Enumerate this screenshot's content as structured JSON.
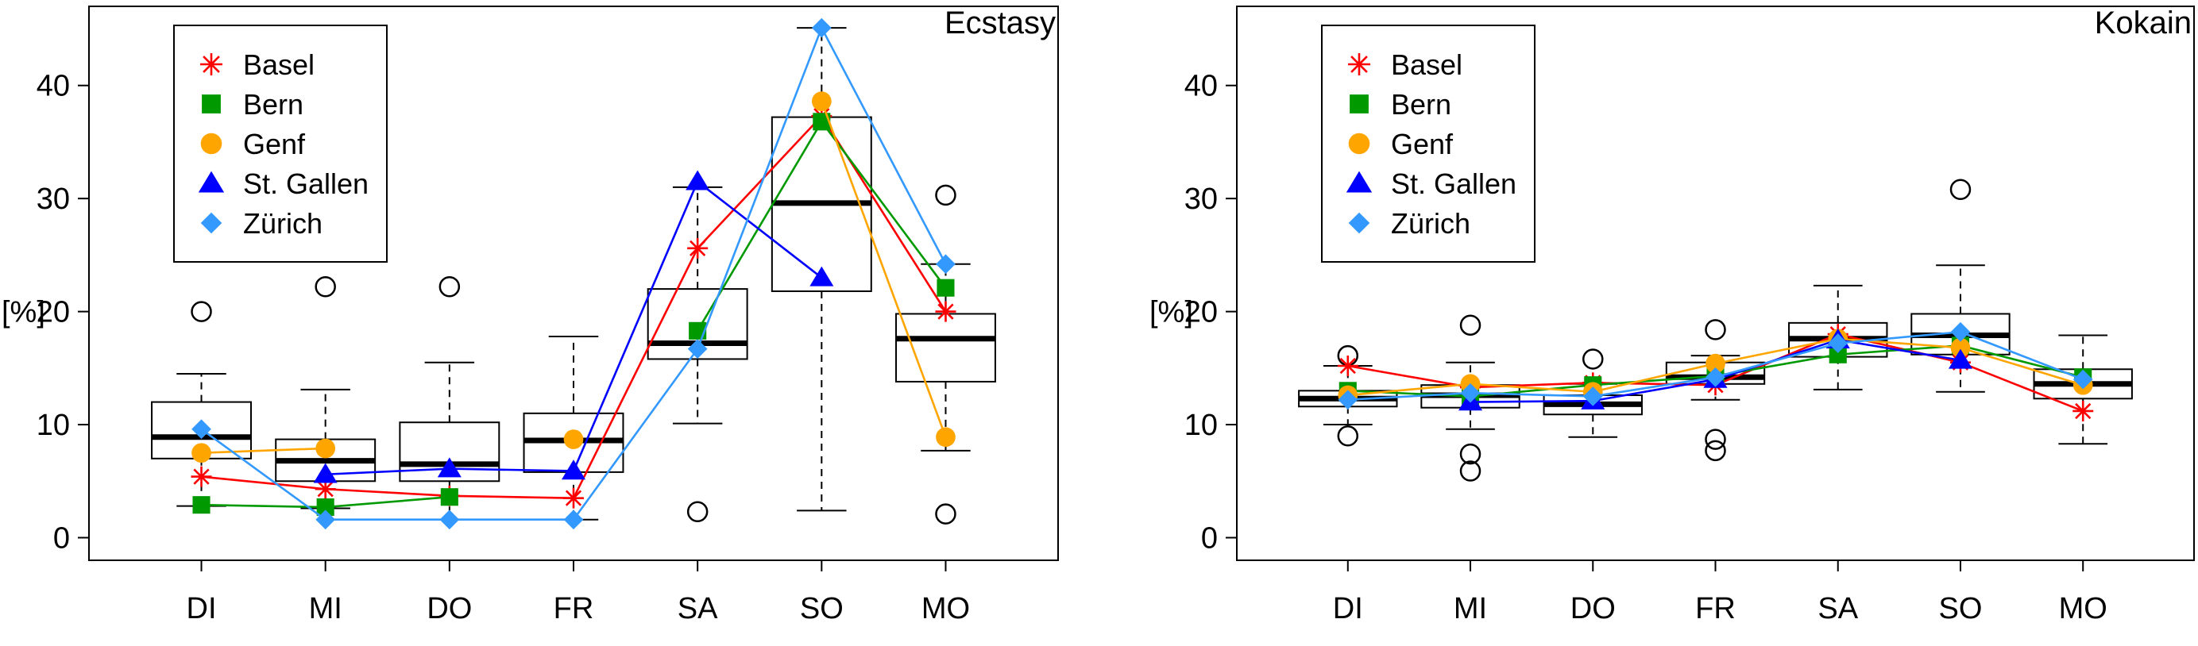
{
  "chart_data": [
    {
      "type": "box",
      "title": "Ecstasy",
      "ylabel": "[%]",
      "categories": [
        "DI",
        "MI",
        "DO",
        "FR",
        "SA",
        "SO",
        "MO"
      ],
      "ylim": [
        -2,
        47
      ],
      "yticks": [
        0,
        10,
        20,
        30,
        40
      ],
      "boxes": [
        {
          "min": 2.8,
          "q1": 7.0,
          "median": 8.9,
          "q3": 12.0,
          "max": 14.5,
          "outliers": [
            20.0
          ]
        },
        {
          "min": 2.6,
          "q1": 5.0,
          "median": 6.8,
          "q3": 8.7,
          "max": 13.1,
          "outliers": [
            22.2
          ]
        },
        {
          "min": 1.6,
          "q1": 5.0,
          "median": 6.5,
          "q3": 10.2,
          "max": 15.5,
          "outliers": [
            22.2
          ]
        },
        {
          "min": 1.6,
          "q1": 5.8,
          "median": 8.6,
          "q3": 11.0,
          "max": 17.8,
          "outliers": []
        },
        {
          "min": 10.1,
          "q1": 15.8,
          "median": 17.2,
          "q3": 22.0,
          "max": 31.0,
          "outliers": [
            2.3
          ]
        },
        {
          "min": 2.4,
          "q1": 21.8,
          "median": 29.6,
          "q3": 37.2,
          "max": 45.1,
          "outliers": []
        },
        {
          "min": 7.7,
          "q1": 13.8,
          "median": 17.6,
          "q3": 19.8,
          "max": 24.2,
          "outliers": [
            30.3,
            2.1
          ]
        }
      ],
      "series": [
        {
          "name": "Basel",
          "color": "#ff0000",
          "marker": "asterisk",
          "values": [
            5.4,
            4.3,
            3.7,
            3.5,
            25.6,
            37.3,
            20.0
          ]
        },
        {
          "name": "Bern",
          "color": "#009900",
          "marker": "square",
          "values": [
            2.9,
            2.7,
            3.6,
            null,
            18.3,
            36.8,
            22.1
          ]
        },
        {
          "name": "Genf",
          "color": "#ffa500",
          "marker": "circle",
          "values": [
            7.5,
            7.9,
            null,
            8.7,
            null,
            38.6,
            8.9
          ]
        },
        {
          "name": "St. Gallen",
          "color": "#0000ff",
          "marker": "triangle",
          "values": [
            null,
            5.6,
            6.1,
            5.9,
            31.5,
            23.0,
            null
          ]
        },
        {
          "name": "Zürich",
          "color": "#3399ff",
          "marker": "diamond",
          "values": [
            9.6,
            1.6,
            1.6,
            1.6,
            16.7,
            45.1,
            24.2
          ]
        }
      ],
      "legend": "top-left"
    },
    {
      "type": "box",
      "title": "Kokain",
      "ylabel": "[%]",
      "categories": [
        "DI",
        "MI",
        "DO",
        "FR",
        "SA",
        "SO",
        "MO"
      ],
      "ylim": [
        -2,
        47
      ],
      "yticks": [
        0,
        10,
        20,
        30,
        40
      ],
      "boxes": [
        {
          "min": 10.0,
          "q1": 11.6,
          "median": 12.3,
          "q3": 13.0,
          "max": 15.2,
          "outliers": [
            16.1,
            9.0
          ]
        },
        {
          "min": 9.6,
          "q1": 11.5,
          "median": 12.6,
          "q3": 13.5,
          "max": 15.5,
          "outliers": [
            18.8,
            7.4,
            5.9
          ]
        },
        {
          "min": 8.9,
          "q1": 10.9,
          "median": 11.8,
          "q3": 12.6,
          "max": 13.6,
          "outliers": [
            15.8
          ]
        },
        {
          "min": 12.2,
          "q1": 13.6,
          "median": 14.2,
          "q3": 15.5,
          "max": 16.1,
          "outliers": [
            18.4,
            8.7,
            7.7
          ]
        },
        {
          "min": 13.1,
          "q1": 16.0,
          "median": 17.6,
          "q3": 19.0,
          "max": 22.3,
          "outliers": []
        },
        {
          "min": 12.9,
          "q1": 16.2,
          "median": 17.9,
          "q3": 19.8,
          "max": 24.1,
          "outliers": [
            30.8
          ]
        },
        {
          "min": 8.3,
          "q1": 12.3,
          "median": 13.6,
          "q3": 14.9,
          "max": 17.9,
          "outliers": []
        }
      ],
      "series": [
        {
          "name": "Basel",
          "color": "#ff0000",
          "marker": "asterisk",
          "values": [
            15.2,
            13.3,
            13.7,
            13.5,
            18.0,
            15.5,
            11.2
          ]
        },
        {
          "name": "Bern",
          "color": "#009900",
          "marker": "square",
          "values": [
            13.0,
            12.5,
            13.5,
            14.3,
            16.2,
            17.0,
            14.2
          ]
        },
        {
          "name": "Genf",
          "color": "#ffa500",
          "marker": "circle",
          "values": [
            12.6,
            13.6,
            12.9,
            15.4,
            17.6,
            16.8,
            13.5
          ]
        },
        {
          "name": "St. Gallen",
          "color": "#0000ff",
          "marker": "triangle",
          "values": [
            null,
            12.0,
            12.1,
            14.0,
            17.5,
            15.7,
            null
          ]
        },
        {
          "name": "Zürich",
          "color": "#3399ff",
          "marker": "diamond",
          "values": [
            12.2,
            12.8,
            12.5,
            14.2,
            17.2,
            18.2,
            14.0
          ]
        }
      ],
      "legend": "top-left"
    }
  ]
}
